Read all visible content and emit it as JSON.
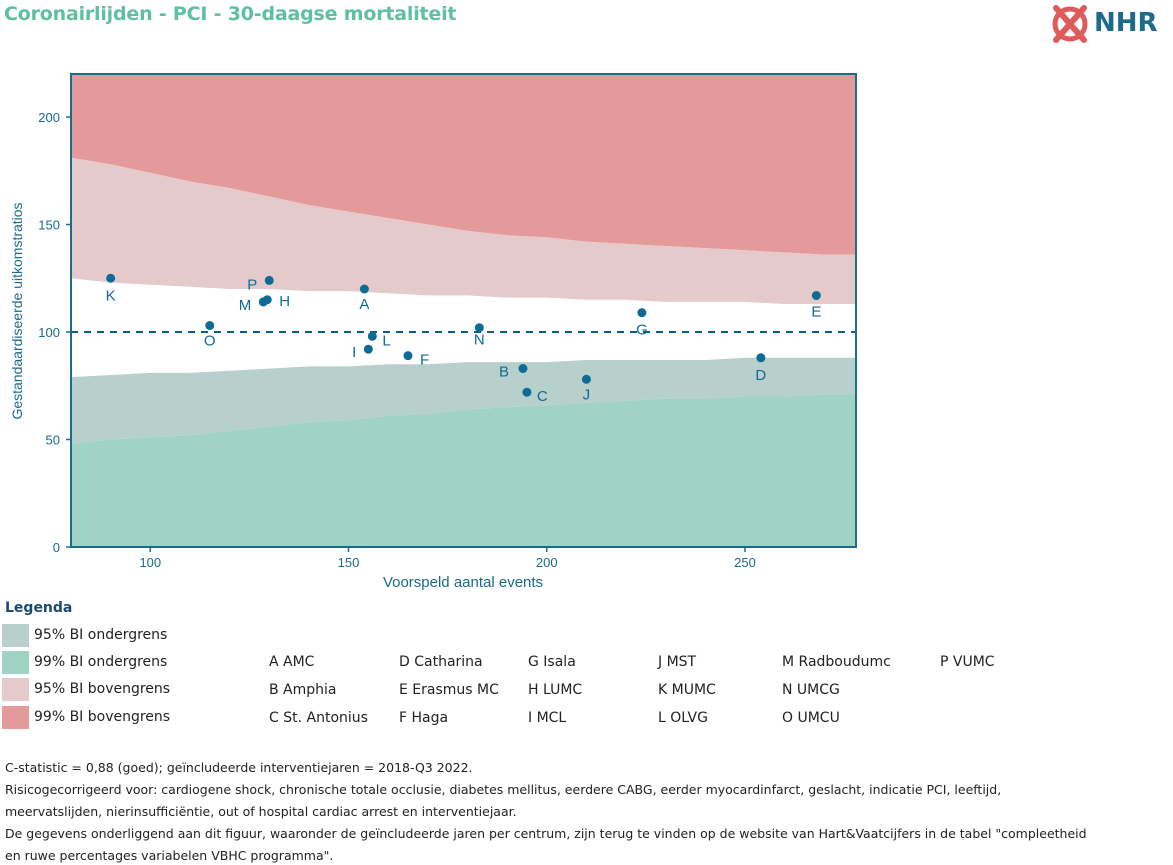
{
  "title": "Coronairlijden - PCI - 30-daagse mortaliteit",
  "logo": {
    "text": "NHR",
    "color": "#1d6b8a",
    "mark_color": "#e05a5a"
  },
  "chart_data": {
    "type": "scatter",
    "xlabel": "Voorspeld aantal events",
    "ylabel": "Gestandaardiseerde uitkomstratios",
    "xlim": [
      80,
      278
    ],
    "ylim": [
      0,
      220
    ],
    "xticks": [
      100,
      150,
      200,
      250
    ],
    "yticks": [
      0,
      50,
      100,
      150,
      200
    ],
    "reference_line": 100,
    "grid": false,
    "colors": {
      "upper99": "#e49a9a",
      "upper95": "#e5cacb",
      "lower95": "#b8d0cb",
      "lower99": "#9fd4c5",
      "point": "#0d6b96",
      "axis": "#1a6b8c"
    },
    "bands": {
      "x": [
        80,
        90,
        100,
        110,
        120,
        130,
        140,
        150,
        160,
        170,
        180,
        190,
        200,
        210,
        220,
        230,
        240,
        250,
        260,
        270,
        278
      ],
      "upper99": [
        181,
        178,
        174,
        170,
        167,
        163,
        159,
        156,
        153,
        150,
        147,
        145,
        144,
        142,
        141,
        140,
        139,
        138,
        137,
        136,
        136
      ],
      "upper95": [
        125,
        123,
        122,
        121,
        120,
        120,
        119,
        119,
        118,
        117,
        117,
        116,
        116,
        115,
        115,
        114,
        114,
        114,
        113,
        113,
        113
      ],
      "lower95": [
        79,
        80,
        81,
        81,
        82,
        83,
        84,
        84,
        85,
        85,
        86,
        86,
        86,
        87,
        87,
        87,
        87,
        88,
        88,
        88,
        88
      ],
      "lower99": [
        48,
        50,
        51,
        52,
        54,
        56,
        58,
        59,
        61,
        62,
        64,
        65,
        66,
        67,
        68,
        69,
        69,
        70,
        70,
        71,
        71
      ]
    },
    "points": [
      {
        "label": "A",
        "x": 154,
        "y": 120
      },
      {
        "label": "B",
        "x": 194,
        "y": 83
      },
      {
        "label": "C",
        "x": 195,
        "y": 72
      },
      {
        "label": "D",
        "x": 254,
        "y": 88
      },
      {
        "label": "E",
        "x": 268,
        "y": 117
      },
      {
        "label": "F",
        "x": 165,
        "y": 89
      },
      {
        "label": "G",
        "x": 224,
        "y": 109
      },
      {
        "label": "H",
        "x": 129.5,
        "y": 115
      },
      {
        "label": "I",
        "x": 155,
        "y": 92
      },
      {
        "label": "J",
        "x": 210,
        "y": 78
      },
      {
        "label": "K",
        "x": 90,
        "y": 125
      },
      {
        "label": "L",
        "x": 156,
        "y": 98
      },
      {
        "label": "M",
        "x": 128.5,
        "y": 114
      },
      {
        "label": "N",
        "x": 183,
        "y": 102
      },
      {
        "label": "O",
        "x": 115,
        "y": 103
      },
      {
        "label": "P",
        "x": 130,
        "y": 124
      }
    ]
  },
  "legend": {
    "title": "Legenda",
    "items": [
      {
        "label": "95% BI ondergrens",
        "color": "#b8d0cb"
      },
      {
        "label": "99% BI ondergrens",
        "color": "#9fd4c5"
      },
      {
        "label": "95% BI bovengrens",
        "color": "#e5cacb"
      },
      {
        "label": "99% BI bovengrens",
        "color": "#e49a9a"
      }
    ],
    "centers": [
      [
        "A AMC",
        "B Amphia",
        "C St. Antonius"
      ],
      [
        "D Catharina",
        "E Erasmus MC",
        "F Haga"
      ],
      [
        "G Isala",
        "H LUMC",
        "I MCL"
      ],
      [
        "J MST",
        "K MUMC",
        "L OLVG"
      ],
      [
        "M Radboudumc",
        "N UMCG",
        "O UMCU"
      ],
      [
        "P VUMC"
      ]
    ]
  },
  "footer": {
    "line1": "C-statistic =  0,88 (goed); geïncludeerde interventiejaren = 2018-Q3 2022.",
    "line2": "Risicogecorrigeerd voor: cardiogene shock, chronische totale occlusie, diabetes mellitus, eerdere CABG, eerder myocardinfarct, geslacht, indicatie PCI, leeftijd,",
    "line3": "meervatslijden, nierinsufficiëntie, out of hospital cardiac arrest en interventiejaar.",
    "line4": "De gegevens onderliggend aan dit figuur, waaronder de geïncludeerde jaren per centrum, zijn terug te vinden op de website van Hart&Vaatcijfers in de tabel \"compleetheid",
    "line5": "en ruwe percentages variabelen VBHC programma\"."
  }
}
